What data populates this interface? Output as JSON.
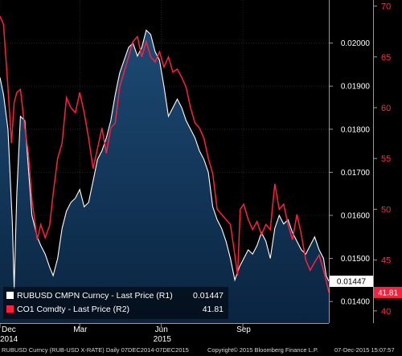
{
  "footer": {
    "series_desc": "RUBUSD Curncy (RUB-USD X-RATE)  Daily 07DEC2014-07DEC2015",
    "copyright": "Copyright© 2015 Bloomberg Finance L.P.",
    "timestamp": "07-Dec-2015 15:07:57"
  },
  "legend": {
    "items": [
      {
        "label": "RUBUSD CMPN Curncy - Last Price (R1)",
        "value": "0.01447",
        "color": "#ffffff"
      },
      {
        "label": "CO1 Comdty - Last Price (R2)",
        "value": "41.81",
        "color": "#ff1f3d"
      }
    ]
  },
  "chart_data": {
    "type": "line",
    "xlim": [
      "2014-12-01",
      "2015-12-07"
    ],
    "x_ticks": [
      {
        "label": "Dec",
        "sublabel": "2014",
        "x": "2014-12-01"
      },
      {
        "label": "Mar",
        "sublabel": "",
        "x": "2015-03-01"
      },
      {
        "label": "Jun",
        "sublabel": "2015",
        "x": "2015-06-01"
      },
      {
        "label": "Sep",
        "sublabel": "",
        "x": "2015-09-01"
      }
    ],
    "axes": {
      "r1": {
        "ylim": [
          0.0135,
          0.021
        ],
        "ticks": [
          "0.01400",
          "0.01500",
          "0.01600",
          "0.01700",
          "0.01800",
          "0.01900",
          "0.02000"
        ],
        "color": "#ffffff"
      },
      "r2": {
        "ylim": [
          38.8,
          70.6
        ],
        "ticks": [
          "40",
          "45",
          "50",
          "55",
          "60",
          "65",
          "70"
        ],
        "color": "#ff2a3c"
      }
    },
    "last_value_tags": [
      {
        "axis": "r1",
        "value": 0.01447,
        "label": "0.01447"
      },
      {
        "axis": "r2",
        "value": 41.81,
        "label": "41.81"
      }
    ],
    "series": [
      {
        "name": "RUBUSD CMPN Curncy - Last Price (R1)",
        "axis": "r1",
        "color": "#ffffff",
        "area": true,
        "points": [
          [
            "2014-12-01",
            0.0192
          ],
          [
            "2014-12-05",
            0.0188
          ],
          [
            "2014-12-10",
            0.018
          ],
          [
            "2014-12-15",
            0.0158
          ],
          [
            "2014-12-17",
            0.0143
          ],
          [
            "2014-12-20",
            0.0165
          ],
          [
            "2014-12-24",
            0.0183
          ],
          [
            "2014-12-29",
            0.0182
          ],
          [
            "2015-01-02",
            0.0171
          ],
          [
            "2015-01-06",
            0.016
          ],
          [
            "2015-01-12",
            0.0155
          ],
          [
            "2015-01-16",
            0.0153
          ],
          [
            "2015-01-21",
            0.0151
          ],
          [
            "2015-01-26",
            0.0148
          ],
          [
            "2015-01-30",
            0.0146
          ],
          [
            "2015-02-04",
            0.015
          ],
          [
            "2015-02-09",
            0.0157
          ],
          [
            "2015-02-14",
            0.0161
          ],
          [
            "2015-02-19",
            0.0163
          ],
          [
            "2015-02-24",
            0.0164
          ],
          [
            "2015-03-01",
            0.0166
          ],
          [
            "2015-03-06",
            0.0162
          ],
          [
            "2015-03-11",
            0.0163
          ],
          [
            "2015-03-16",
            0.0168
          ],
          [
            "2015-03-21",
            0.0173
          ],
          [
            "2015-03-26",
            0.0175
          ],
          [
            "2015-03-31",
            0.0178
          ],
          [
            "2015-04-05",
            0.0182
          ],
          [
            "2015-04-10",
            0.0188
          ],
          [
            "2015-04-15",
            0.0193
          ],
          [
            "2015-04-20",
            0.0196
          ],
          [
            "2015-04-25",
            0.0199
          ],
          [
            "2015-04-30",
            0.02
          ],
          [
            "2015-05-05",
            0.0197
          ],
          [
            "2015-05-10",
            0.0199
          ],
          [
            "2015-05-15",
            0.0203
          ],
          [
            "2015-05-20",
            0.0202
          ],
          [
            "2015-05-25",
            0.0198
          ],
          [
            "2015-05-30",
            0.0196
          ],
          [
            "2015-06-04",
            0.019
          ],
          [
            "2015-06-09",
            0.0183
          ],
          [
            "2015-06-14",
            0.0185
          ],
          [
            "2015-06-19",
            0.0187
          ],
          [
            "2015-06-24",
            0.0185
          ],
          [
            "2015-06-29",
            0.0182
          ],
          [
            "2015-07-04",
            0.018
          ],
          [
            "2015-07-09",
            0.0178
          ],
          [
            "2015-07-14",
            0.0175
          ],
          [
            "2015-07-19",
            0.0173
          ],
          [
            "2015-07-24",
            0.017
          ],
          [
            "2015-07-29",
            0.0162
          ],
          [
            "2015-08-03",
            0.0159
          ],
          [
            "2015-08-08",
            0.0157
          ],
          [
            "2015-08-13",
            0.0154
          ],
          [
            "2015-08-18",
            0.015
          ],
          [
            "2015-08-23",
            0.0145
          ],
          [
            "2015-08-28",
            0.0148
          ],
          [
            "2015-09-02",
            0.015
          ],
          [
            "2015-09-07",
            0.0152
          ],
          [
            "2015-09-12",
            0.0151
          ],
          [
            "2015-09-17",
            0.0153
          ],
          [
            "2015-09-22",
            0.0156
          ],
          [
            "2015-09-27",
            0.0154
          ],
          [
            "2015-10-02",
            0.015
          ],
          [
            "2015-10-07",
            0.0157
          ],
          [
            "2015-10-12",
            0.016
          ],
          [
            "2015-10-17",
            0.0158
          ],
          [
            "2015-10-22",
            0.0159
          ],
          [
            "2015-10-27",
            0.0156
          ],
          [
            "2015-11-01",
            0.0154
          ],
          [
            "2015-11-06",
            0.0152
          ],
          [
            "2015-11-11",
            0.0151
          ],
          [
            "2015-11-16",
            0.0153
          ],
          [
            "2015-11-21",
            0.0155
          ],
          [
            "2015-11-26",
            0.0152
          ],
          [
            "2015-12-01",
            0.015
          ],
          [
            "2015-12-04",
            0.0146
          ],
          [
            "2015-12-07",
            0.01447
          ]
        ]
      },
      {
        "name": "CO1 Comdty - Last Price (R2)",
        "axis": "r2",
        "color": "#ff1f3d",
        "area": false,
        "points": [
          [
            "2014-12-01",
            69.0
          ],
          [
            "2014-12-05",
            68.2
          ],
          [
            "2014-12-10",
            62.0
          ],
          [
            "2014-12-14",
            56.5
          ],
          [
            "2014-12-17",
            60.5
          ],
          [
            "2014-12-20",
            61.5
          ],
          [
            "2014-12-24",
            61.8
          ],
          [
            "2014-12-29",
            58.0
          ],
          [
            "2015-01-02",
            55.5
          ],
          [
            "2015-01-06",
            51.0
          ],
          [
            "2015-01-12",
            47.0
          ],
          [
            "2015-01-16",
            48.5
          ],
          [
            "2015-01-21",
            47.2
          ],
          [
            "2015-01-26",
            48.4
          ],
          [
            "2015-01-30",
            51.5
          ],
          [
            "2015-02-04",
            55.0
          ],
          [
            "2015-02-09",
            56.5
          ],
          [
            "2015-02-14",
            61.0
          ],
          [
            "2015-02-19",
            60.0
          ],
          [
            "2015-02-24",
            59.5
          ],
          [
            "2015-03-01",
            61.5
          ],
          [
            "2015-03-06",
            59.5
          ],
          [
            "2015-03-11",
            57.0
          ],
          [
            "2015-03-16",
            54.0
          ],
          [
            "2015-03-21",
            56.0
          ],
          [
            "2015-03-26",
            58.0
          ],
          [
            "2015-03-31",
            55.5
          ],
          [
            "2015-04-05",
            58.0
          ],
          [
            "2015-04-10",
            58.5
          ],
          [
            "2015-04-15",
            62.0
          ],
          [
            "2015-04-20",
            63.5
          ],
          [
            "2015-04-25",
            65.0
          ],
          [
            "2015-04-30",
            66.5
          ],
          [
            "2015-05-05",
            67.0
          ],
          [
            "2015-05-10",
            65.0
          ],
          [
            "2015-05-15",
            66.5
          ],
          [
            "2015-05-20",
            65.0
          ],
          [
            "2015-05-25",
            64.5
          ],
          [
            "2015-05-30",
            65.5
          ],
          [
            "2015-06-04",
            64.0
          ],
          [
            "2015-06-09",
            65.0
          ],
          [
            "2015-06-14",
            63.5
          ],
          [
            "2015-06-19",
            63.8
          ],
          [
            "2015-06-24",
            63.0
          ],
          [
            "2015-06-29",
            62.0
          ],
          [
            "2015-07-04",
            60.0
          ],
          [
            "2015-07-09",
            58.5
          ],
          [
            "2015-07-14",
            58.0
          ],
          [
            "2015-07-19",
            57.0
          ],
          [
            "2015-07-24",
            55.0
          ],
          [
            "2015-07-29",
            53.5
          ],
          [
            "2015-08-03",
            50.0
          ],
          [
            "2015-08-08",
            49.5
          ],
          [
            "2015-08-13",
            49.0
          ],
          [
            "2015-08-18",
            48.5
          ],
          [
            "2015-08-23",
            45.5
          ],
          [
            "2015-08-26",
            43.5
          ],
          [
            "2015-08-29",
            50.0
          ],
          [
            "2015-09-02",
            50.5
          ],
          [
            "2015-09-07",
            49.0
          ],
          [
            "2015-09-12",
            48.0
          ],
          [
            "2015-09-17",
            48.8
          ],
          [
            "2015-09-22",
            47.5
          ],
          [
            "2015-09-27",
            48.5
          ],
          [
            "2015-10-02",
            48.0
          ],
          [
            "2015-10-07",
            52.5
          ],
          [
            "2015-10-12",
            50.0
          ],
          [
            "2015-10-17",
            50.5
          ],
          [
            "2015-10-22",
            48.5
          ],
          [
            "2015-10-27",
            47.0
          ],
          [
            "2015-11-01",
            49.5
          ],
          [
            "2015-11-06",
            47.5
          ],
          [
            "2015-11-11",
            45.0
          ],
          [
            "2015-11-16",
            44.0
          ],
          [
            "2015-11-21",
            44.8
          ],
          [
            "2015-11-26",
            45.5
          ],
          [
            "2015-12-01",
            44.0
          ],
          [
            "2015-12-04",
            43.0
          ],
          [
            "2015-12-07",
            41.81
          ]
        ]
      }
    ]
  }
}
